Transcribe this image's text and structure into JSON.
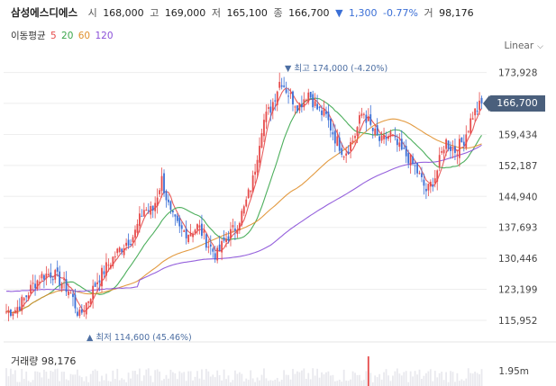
{
  "header": {
    "name": "삼성에스디에스",
    "open_label": "시",
    "open": "168,000",
    "high_label": "고",
    "high": "169,000",
    "low_label": "저",
    "low": "165,100",
    "close_label": "종",
    "close": "166,700",
    "change_arrow": "▼",
    "change": "1,300",
    "change_pct": "-0.77%",
    "volume_label": "거",
    "volume": "98,176"
  },
  "ma": {
    "label": "이동평균",
    "items": [
      {
        "period": "5",
        "color": "#e64b4b"
      },
      {
        "period": "20",
        "color": "#3aa64b"
      },
      {
        "period": "60",
        "color": "#e0902d"
      },
      {
        "period": "120",
        "color": "#8a50d8"
      }
    ]
  },
  "scale": {
    "label": "Linear"
  },
  "axis": {
    "y_ticks": [
      "173,928",
      "166,700",
      "159,434",
      "152,187",
      "144,940",
      "137,693",
      "130,446",
      "123,199",
      "115,952"
    ],
    "current_value": "166,700",
    "volume_tick": "1.95m"
  },
  "annotations": {
    "max": "▼ 최고 174,000 (-4.20%)",
    "min": "▲ 최저 114,600 (45.46%)"
  },
  "volume": {
    "label": "거래량",
    "value": "98,176"
  },
  "colors": {
    "up": "#e64b4b",
    "down": "#3b6fd6",
    "accent": "#4a5f7c"
  },
  "chart_data": {
    "type": "line",
    "title": "삼성에스디에스",
    "ylim": [
      113000,
      177000
    ],
    "yticks": [
      173928,
      166700,
      159434,
      152187,
      144940,
      137693,
      130446,
      123199,
      115952
    ],
    "close_trend_anchors": [
      118000,
      118500,
      121000,
      124500,
      126500,
      127000,
      125000,
      122500,
      116800,
      121000,
      125500,
      128500,
      131500,
      134000,
      136000,
      142000,
      141500,
      149000,
      140500,
      137000,
      136500,
      138000,
      134000,
      131000,
      135000,
      137500,
      142000,
      149000,
      162000,
      166000,
      172500,
      168500,
      166000,
      169500,
      165500,
      163500,
      158500,
      155000,
      158500,
      165000,
      160500,
      157500,
      159500,
      156000,
      154000,
      150500,
      146000,
      150000,
      158000,
      155500,
      158000,
      164000,
      166700
    ],
    "series": [
      {
        "name": "5",
        "color": "#e64b4b"
      },
      {
        "name": "20",
        "color": "#3aa64b"
      },
      {
        "name": "60",
        "color": "#e0902d"
      },
      {
        "name": "120",
        "color": "#8a50d8"
      }
    ],
    "max_marker": {
      "value": 174000,
      "pct": "-4.20%"
    },
    "min_marker": {
      "value": 114600,
      "pct": "45.46%"
    },
    "last_close": 166700
  }
}
